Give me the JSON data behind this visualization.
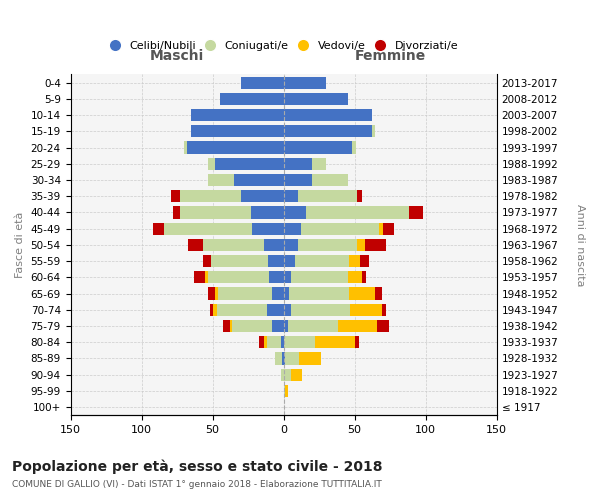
{
  "age_groups": [
    "100+",
    "95-99",
    "90-94",
    "85-89",
    "80-84",
    "75-79",
    "70-74",
    "65-69",
    "60-64",
    "55-59",
    "50-54",
    "45-49",
    "40-44",
    "35-39",
    "30-34",
    "25-29",
    "20-24",
    "15-19",
    "10-14",
    "5-9",
    "0-4"
  ],
  "birth_years": [
    "≤ 1917",
    "1918-1922",
    "1923-1927",
    "1928-1932",
    "1933-1937",
    "1938-1942",
    "1943-1947",
    "1948-1952",
    "1953-1957",
    "1958-1962",
    "1963-1967",
    "1968-1972",
    "1973-1977",
    "1978-1982",
    "1983-1987",
    "1988-1992",
    "1993-1997",
    "1998-2002",
    "2003-2007",
    "2008-2012",
    "2013-2017"
  ],
  "maschi": {
    "celibi": [
      0,
      0,
      0,
      1,
      2,
      8,
      12,
      8,
      10,
      11,
      14,
      22,
      23,
      30,
      35,
      48,
      68,
      65,
      65,
      45,
      30
    ],
    "coniugati": [
      0,
      0,
      2,
      5,
      10,
      28,
      35,
      38,
      43,
      40,
      43,
      62,
      50,
      43,
      18,
      5,
      2,
      0,
      0,
      0,
      0
    ],
    "vedovi": [
      0,
      0,
      0,
      0,
      2,
      2,
      3,
      2,
      2,
      0,
      0,
      0,
      0,
      0,
      0,
      0,
      0,
      0,
      0,
      0,
      0
    ],
    "divorziati": [
      0,
      0,
      0,
      0,
      3,
      5,
      2,
      5,
      8,
      6,
      10,
      8,
      5,
      6,
      0,
      0,
      0,
      0,
      0,
      0,
      0
    ]
  },
  "femmine": {
    "nubili": [
      0,
      0,
      0,
      1,
      0,
      3,
      5,
      4,
      5,
      8,
      10,
      12,
      16,
      10,
      20,
      20,
      48,
      62,
      62,
      45,
      30
    ],
    "coniugate": [
      0,
      1,
      5,
      10,
      22,
      35,
      42,
      42,
      40,
      38,
      42,
      55,
      72,
      42,
      25,
      10,
      3,
      2,
      0,
      0,
      0
    ],
    "vedove": [
      0,
      2,
      8,
      15,
      28,
      28,
      22,
      18,
      10,
      8,
      5,
      3,
      0,
      0,
      0,
      0,
      0,
      0,
      0,
      0,
      0
    ],
    "divorziate": [
      0,
      0,
      0,
      0,
      3,
      8,
      3,
      5,
      3,
      6,
      15,
      8,
      10,
      3,
      0,
      0,
      0,
      0,
      0,
      0,
      0
    ]
  },
  "colors": {
    "celibi": "#4472c4",
    "coniugati": "#c5d9a0",
    "vedovi": "#ffc000",
    "divorziati": "#c00000"
  },
  "xlim": 150,
  "title": "Popolazione per età, sesso e stato civile - 2018",
  "subtitle": "COMUNE DI GALLIO (VI) - Dati ISTAT 1° gennaio 2018 - Elaborazione TUTTITALIA.IT",
  "ylabel_left": "Fasce di età",
  "ylabel_right": "Anni di nascita",
  "xlabel_maschi": "Maschi",
  "xlabel_femmine": "Femmine",
  "legend_labels": [
    "Celibi/Nubili",
    "Coniugati/e",
    "Vedovi/e",
    "Divorziati/e"
  ],
  "background_color": "#ffffff",
  "grid_color": "#cccccc"
}
